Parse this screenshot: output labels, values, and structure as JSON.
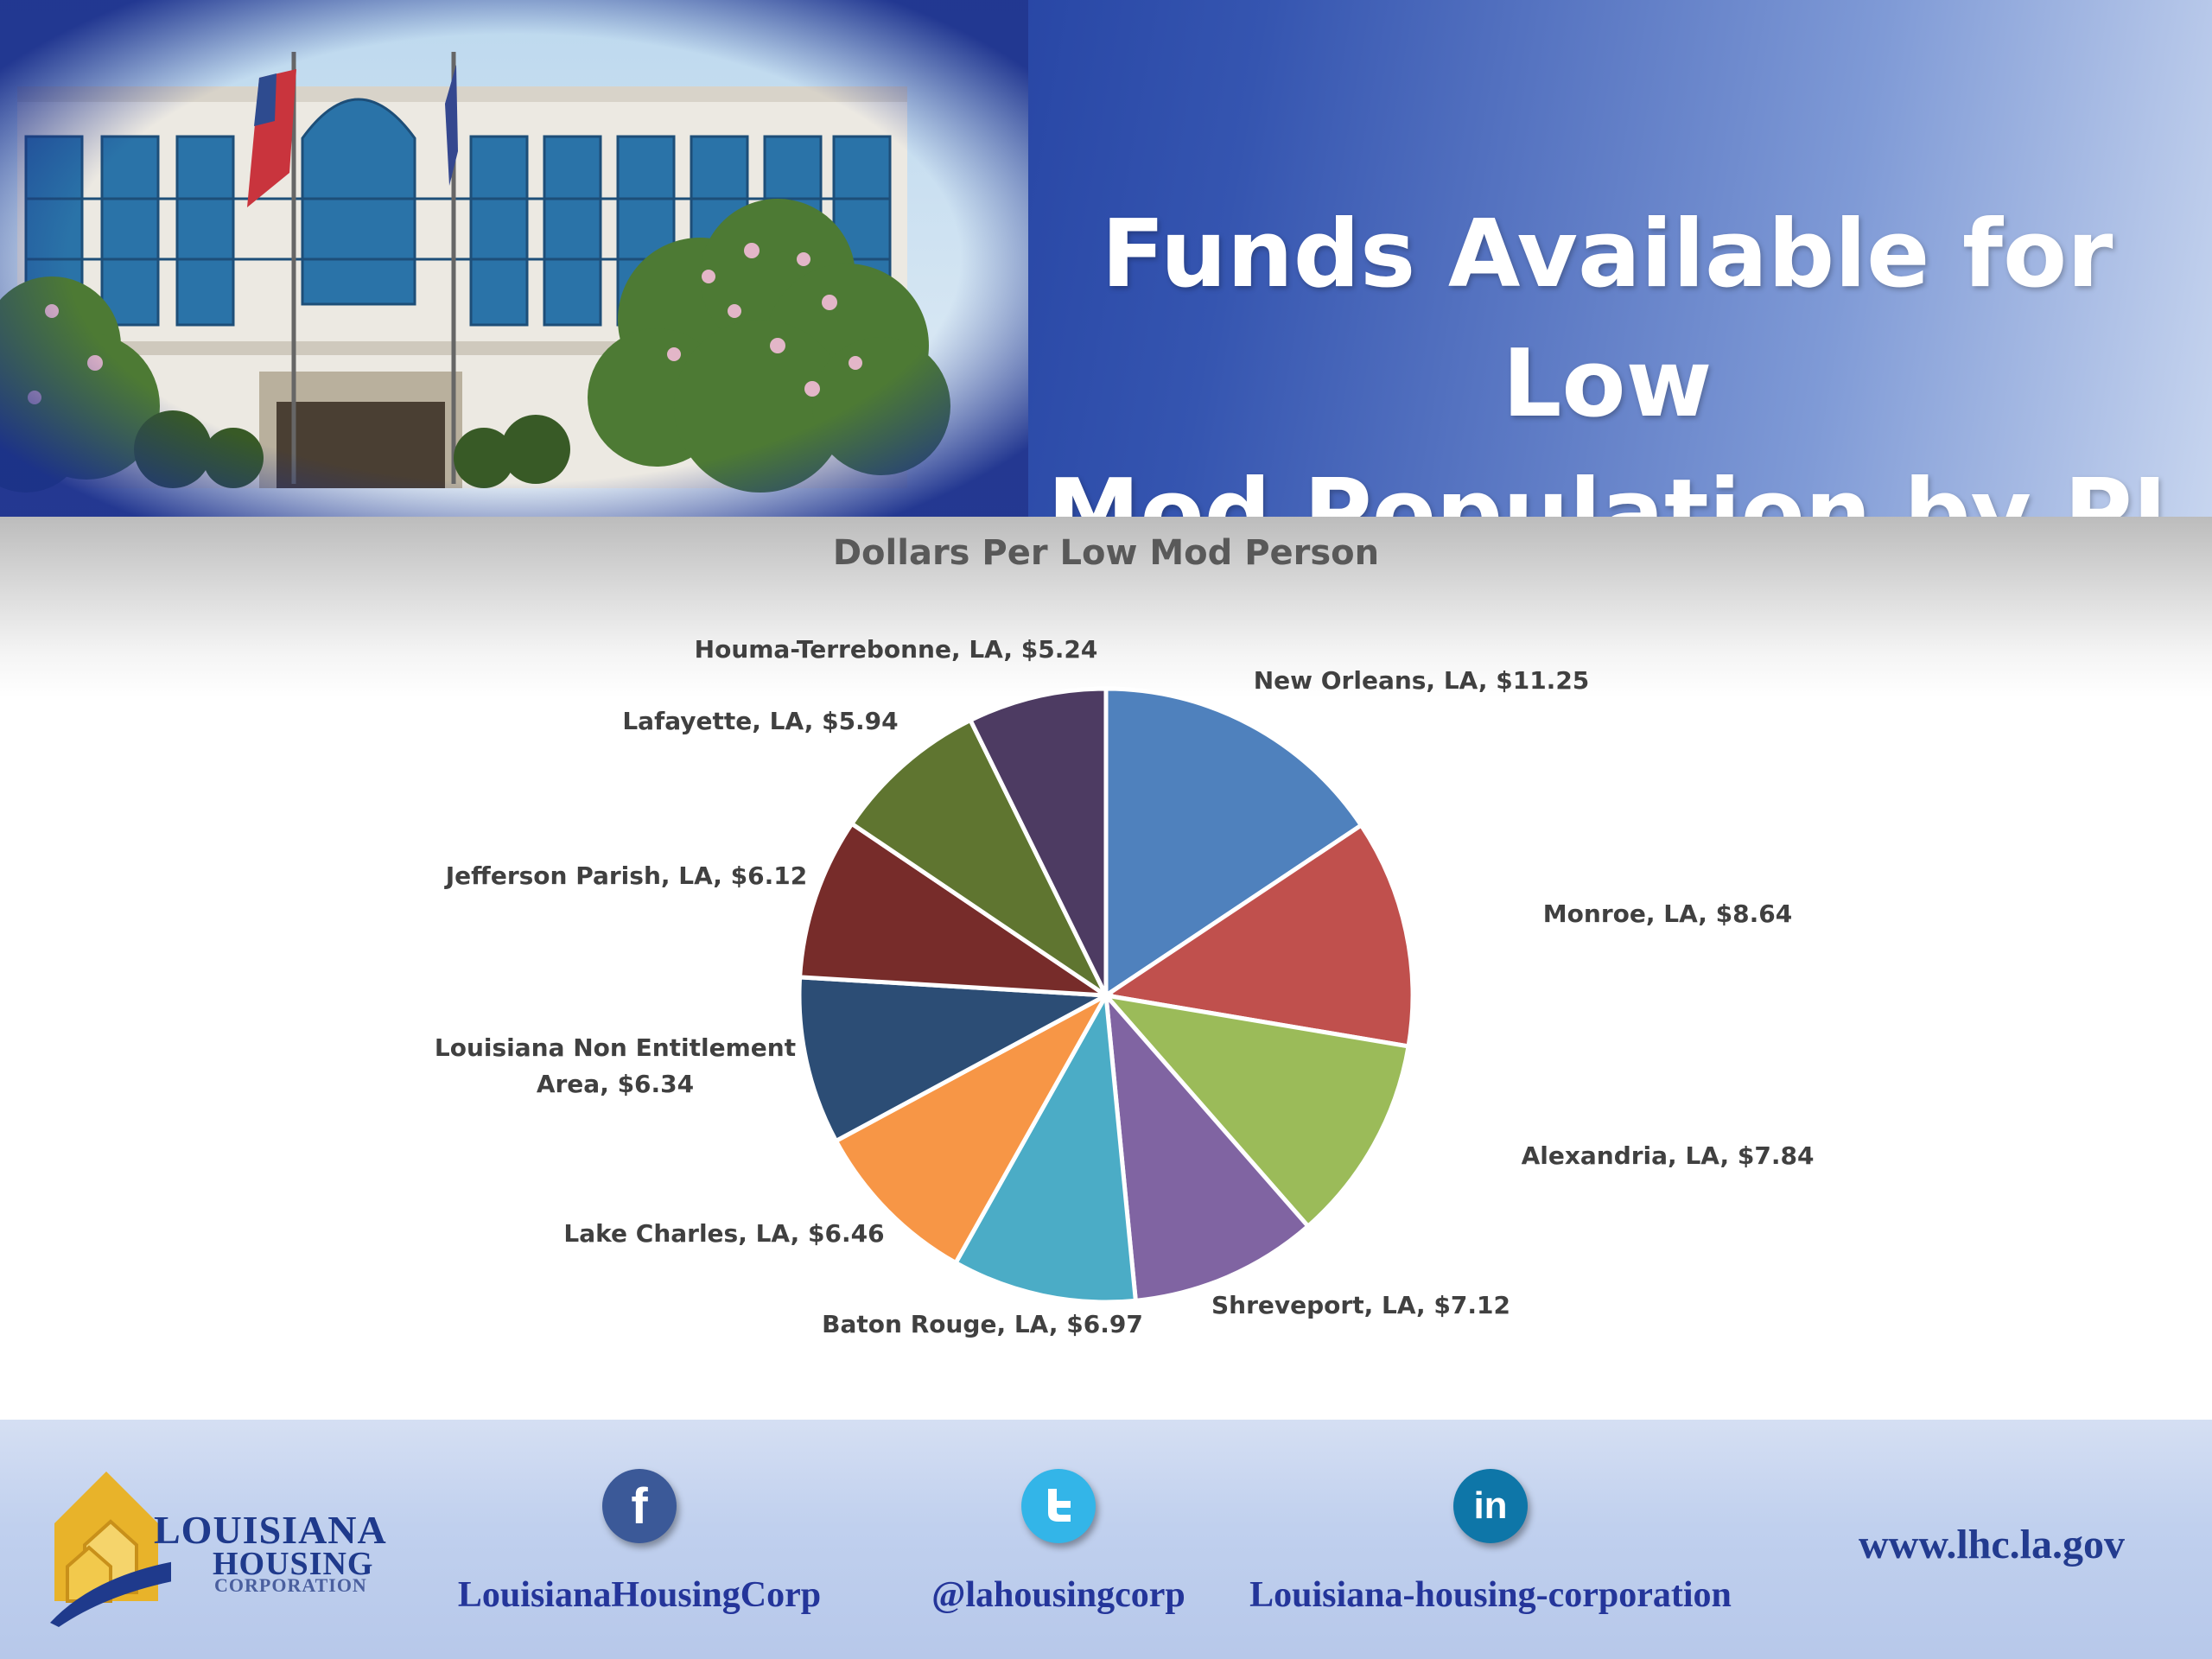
{
  "slide": {
    "title_line1": "Funds Available for Low",
    "title_line2": "Mod Population by PJ"
  },
  "chart_data": {
    "type": "pie",
    "title": "Dollars Per Low Mod Person",
    "categories": [
      "New Orleans, LA",
      "Monroe, LA",
      "Alexandria, LA",
      "Shreveport, LA",
      "Baton Rouge, LA",
      "Lake Charles, LA",
      "Louisiana Non Entitlement Area",
      "Jefferson Parish, LA",
      "Lafayette, LA",
      "Houma-Terrebonne, LA"
    ],
    "values": [
      11.25,
      8.64,
      7.84,
      7.12,
      6.97,
      6.46,
      6.34,
      6.12,
      5.94,
      5.24
    ],
    "value_labels": [
      "$11.25",
      "$8.64",
      "$7.84",
      "$7.12",
      "$6.97",
      "$6.46",
      "$6.34",
      "$6.12",
      "$5.94",
      "$5.24"
    ],
    "colors": [
      "#4f81bd",
      "#c0504d",
      "#9bbb59",
      "#8064a2",
      "#4bacc6",
      "#f79646",
      "#2c4d75",
      "#772c2a",
      "#5f7530",
      "#4d3b62"
    ],
    "data_labels": [
      [
        "New Orleans, LA, $11.25"
      ],
      [
        "Monroe, LA, $8.64"
      ],
      [
        "Alexandria, LA, $7.84"
      ],
      [
        "Shreveport, LA, $7.12"
      ],
      [
        "Baton Rouge, LA, $6.97"
      ],
      [
        "Lake Charles, LA, $6.46"
      ],
      [
        "Louisiana Non Entitlement",
        "Area, $6.34"
      ],
      [
        "Jefferson Parish, LA, $6.12"
      ],
      [
        "Lafayette, LA, $5.94"
      ],
      [
        "Houma-Terrebonne, LA, $5.24"
      ]
    ],
    "start_angle": "12 o'clock",
    "direction": "clockwise",
    "legend": "none"
  },
  "footer": {
    "logo_line1": "LOUISIANA",
    "logo_line2": "HOUSING",
    "logo_line3": "CORPORATION",
    "facebook_label": "LouisianaHousingCorp",
    "twitter_label": "@lahousingcorp",
    "linkedin_label": "Louisiana-housing-corporation",
    "website": "www.lhc.la.gov",
    "facebook_icon_glyph": "f",
    "linkedin_icon_glyph": "in",
    "facebook_color": "#3b5998",
    "twitter_color": "#33b5e8",
    "linkedin_color": "#0e76a8"
  }
}
